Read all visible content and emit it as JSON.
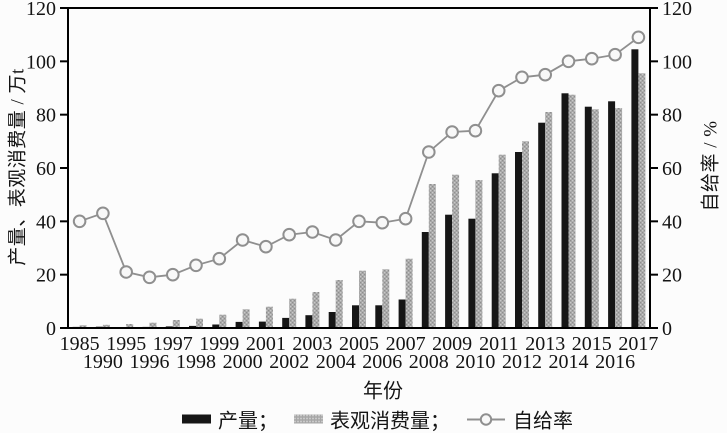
{
  "figure": {
    "background": "#fcfcfc",
    "frame_color": "#000000",
    "text_color": "#141414"
  },
  "axes": {
    "left_axis_title": "产量、表观消费量 / 万t",
    "right_axis_title": "自给率 / %",
    "x_axis_title": "年份"
  },
  "legend": {
    "production_label": "产量；",
    "consumption_label": "表观消费量；",
    "rate_label": "自给率"
  },
  "chart_data": {
    "type": "bar",
    "subtype": "grouped bars (left axis) with overlay line on secondary right axis, open-circle markers",
    "title": "",
    "xlabel": "年份",
    "categories": [
      "1985",
      "1990",
      "1995",
      "1996",
      "1997",
      "1998",
      "1999",
      "2000",
      "2001",
      "2002",
      "2003",
      "2004",
      "2005",
      "2006",
      "2007",
      "2008",
      "2009",
      "2010",
      "2011",
      "2012",
      "2013",
      "2014",
      "2015",
      "2016",
      "2017"
    ],
    "series": [
      {
        "name": "产量",
        "type": "bar",
        "axis": "left",
        "unit": "万t",
        "color": "#161616",
        "values": [
          0.4,
          0.5,
          0.3,
          0.4,
          0.6,
          0.8,
          1.3,
          2.3,
          2.4,
          3.8,
          4.8,
          6.0,
          8.5,
          8.5,
          10.7,
          36,
          42.5,
          41,
          58,
          66,
          77,
          88,
          83,
          85,
          104.5
        ]
      },
      {
        "name": "表观消费量",
        "type": "bar",
        "axis": "left",
        "unit": "万t",
        "color": "#a6a6a6",
        "values": [
          1.0,
          1.2,
          1.5,
          2.0,
          3.0,
          3.5,
          5.0,
          7.0,
          8.0,
          11.0,
          13.5,
          18.0,
          21.5,
          22.0,
          26.0,
          54,
          57.5,
          55.5,
          65,
          70,
          81,
          87.5,
          82,
          82.5,
          95.5
        ]
      },
      {
        "name": "自给率",
        "type": "line",
        "axis": "right",
        "unit": "%",
        "color": "#8f8f8f",
        "marker": "open-circle",
        "marker_fill": "#f8f8f8",
        "values": [
          40,
          43,
          21,
          19,
          20,
          23.5,
          26,
          33,
          30.5,
          35,
          36,
          33,
          40,
          39.5,
          41,
          66,
          73.5,
          74,
          89,
          94,
          95,
          100,
          101,
          102.5,
          109
        ]
      }
    ],
    "left_axis": {
      "label": "产量、表观消费量 / 万t",
      "range": [
        0,
        120
      ],
      "ticks": [
        0,
        20,
        40,
        60,
        80,
        100,
        120
      ]
    },
    "right_axis": {
      "label": "自给率 / %",
      "range": [
        0,
        120
      ],
      "ticks": [
        0,
        20,
        40,
        60,
        80,
        100,
        120
      ]
    },
    "legend_position": "bottom",
    "grid": false
  }
}
